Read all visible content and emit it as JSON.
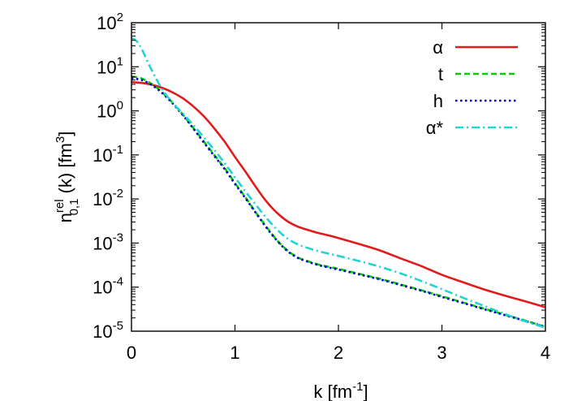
{
  "chart_data": {
    "type": "line",
    "scale": {
      "x": "linear",
      "y": "log"
    },
    "xlim": [
      0,
      4
    ],
    "ylim": [
      1e-05,
      100
    ],
    "x_ticks": [
      "0",
      "1",
      "2",
      "3",
      "4"
    ],
    "y_ticks": [
      {
        "base": "10",
        "exp": "-5"
      },
      {
        "base": "10",
        "exp": "-4"
      },
      {
        "base": "10",
        "exp": "-3"
      },
      {
        "base": "10",
        "exp": "-2"
      },
      {
        "base": "10",
        "exp": "-1"
      },
      {
        "base": "10",
        "exp": "0"
      },
      {
        "base": "10",
        "exp": "1"
      },
      {
        "base": "10",
        "exp": "2"
      }
    ],
    "xlabel": {
      "main": "k [fm",
      "sup": "-1",
      "end": "]"
    },
    "ylabel": {
      "n": "n",
      "sup": "rel",
      "sub": "0,1",
      "mid": " (k) [fm",
      "sup2": "3",
      "end": "]"
    },
    "legend_position": "top-right",
    "grid": false,
    "series": [
      {
        "name": "α",
        "color": "#e31a1c",
        "dash": "solid",
        "points": [
          [
            0,
            4.5
          ],
          [
            0.1,
            4.3
          ],
          [
            0.2,
            3.9
          ],
          [
            0.3,
            3.3
          ],
          [
            0.4,
            2.6
          ],
          [
            0.5,
            1.9
          ],
          [
            0.6,
            1.25
          ],
          [
            0.7,
            0.75
          ],
          [
            0.8,
            0.4
          ],
          [
            0.9,
            0.2
          ],
          [
            1.0,
            0.09
          ],
          [
            1.1,
            0.042
          ],
          [
            1.2,
            0.019
          ],
          [
            1.3,
            0.009
          ],
          [
            1.4,
            0.005
          ],
          [
            1.5,
            0.0032
          ],
          [
            1.6,
            0.0024
          ],
          [
            1.7,
            0.002
          ],
          [
            1.8,
            0.0017
          ],
          [
            1.9,
            0.0015
          ],
          [
            2.0,
            0.0013
          ],
          [
            2.2,
            0.00095
          ],
          [
            2.4,
            0.00068
          ],
          [
            2.6,
            0.00045
          ],
          [
            2.8,
            0.0003
          ],
          [
            3.0,
            0.00019
          ],
          [
            3.2,
            0.00013
          ],
          [
            3.4,
            9e-05
          ],
          [
            3.6,
            6.5e-05
          ],
          [
            3.8,
            4.8e-05
          ],
          [
            4.0,
            3.5e-05
          ]
        ]
      },
      {
        "name": "t",
        "color": "#00cc00",
        "dash": "dashed",
        "points": [
          [
            0,
            6.0
          ],
          [
            0.1,
            5.4
          ],
          [
            0.2,
            4.0
          ],
          [
            0.3,
            2.6
          ],
          [
            0.4,
            1.5
          ],
          [
            0.5,
            0.8
          ],
          [
            0.6,
            0.4
          ],
          [
            0.7,
            0.2
          ],
          [
            0.8,
            0.1
          ],
          [
            0.9,
            0.05
          ],
          [
            1.0,
            0.023
          ],
          [
            1.1,
            0.011
          ],
          [
            1.2,
            0.005
          ],
          [
            1.3,
            0.0024
          ],
          [
            1.4,
            0.0012
          ],
          [
            1.5,
            0.0007
          ],
          [
            1.6,
            0.00048
          ],
          [
            1.7,
            0.00039
          ],
          [
            1.8,
            0.00033
          ],
          [
            1.9,
            0.00029
          ],
          [
            2.0,
            0.00026
          ],
          [
            2.2,
            0.0002
          ],
          [
            2.4,
            0.000155
          ],
          [
            2.6,
            0.000115
          ],
          [
            2.8,
            8.5e-05
          ],
          [
            3.0,
            6.2e-05
          ],
          [
            3.2,
            4.5e-05
          ],
          [
            3.4,
            3.3e-05
          ],
          [
            3.6,
            2.4e-05
          ],
          [
            3.8,
            1.75e-05
          ],
          [
            4.0,
            1.25e-05
          ]
        ]
      },
      {
        "name": "h",
        "color": "#0000cc",
        "dash": "dotted",
        "points": [
          [
            0,
            5.5
          ],
          [
            0.1,
            5.0
          ],
          [
            0.2,
            3.8
          ],
          [
            0.3,
            2.5
          ],
          [
            0.4,
            1.45
          ],
          [
            0.5,
            0.78
          ],
          [
            0.6,
            0.39
          ],
          [
            0.7,
            0.19
          ],
          [
            0.8,
            0.095
          ],
          [
            0.9,
            0.048
          ],
          [
            1.0,
            0.022
          ],
          [
            1.1,
            0.0105
          ],
          [
            1.2,
            0.0049
          ],
          [
            1.3,
            0.0023
          ],
          [
            1.4,
            0.00118
          ],
          [
            1.5,
            0.00068
          ],
          [
            1.6,
            0.00047
          ],
          [
            1.7,
            0.00038
          ],
          [
            1.8,
            0.00032
          ],
          [
            1.9,
            0.00028
          ],
          [
            2.0,
            0.00025
          ],
          [
            2.2,
            0.000195
          ],
          [
            2.4,
            0.00015
          ],
          [
            2.6,
            0.000112
          ],
          [
            2.8,
            8.3e-05
          ],
          [
            3.0,
            6e-05
          ],
          [
            3.2,
            4.4e-05
          ],
          [
            3.4,
            3.2e-05
          ],
          [
            3.6,
            2.35e-05
          ],
          [
            3.8,
            1.72e-05
          ],
          [
            4.0,
            1.25e-05
          ]
        ]
      },
      {
        "name": "α*",
        "color": "#22d3d3",
        "dash": "dashdot",
        "points": [
          [
            0,
            45
          ],
          [
            0.05,
            38
          ],
          [
            0.1,
            25
          ],
          [
            0.15,
            14
          ],
          [
            0.2,
            8
          ],
          [
            0.3,
            3.0
          ],
          [
            0.4,
            1.5
          ],
          [
            0.5,
            0.85
          ],
          [
            0.6,
            0.47
          ],
          [
            0.7,
            0.25
          ],
          [
            0.8,
            0.13
          ],
          [
            0.9,
            0.065
          ],
          [
            1.0,
            0.031
          ],
          [
            1.1,
            0.015
          ],
          [
            1.2,
            0.0075
          ],
          [
            1.3,
            0.0038
          ],
          [
            1.4,
            0.0021
          ],
          [
            1.5,
            0.0013
          ],
          [
            1.6,
            0.00095
          ],
          [
            1.7,
            0.00078
          ],
          [
            1.8,
            0.00066
          ],
          [
            1.9,
            0.00058
          ],
          [
            2.0,
            0.00051
          ],
          [
            2.2,
            0.00039
          ],
          [
            2.4,
            0.00029
          ],
          [
            2.6,
            0.000205
          ],
          [
            2.8,
            0.000138
          ],
          [
            3.0,
            9e-05
          ],
          [
            3.2,
            5.8e-05
          ],
          [
            3.4,
            3.8e-05
          ],
          [
            3.6,
            2.5e-05
          ],
          [
            3.8,
            1.7e-05
          ],
          [
            4.0,
            1.2e-05
          ]
        ]
      }
    ]
  }
}
